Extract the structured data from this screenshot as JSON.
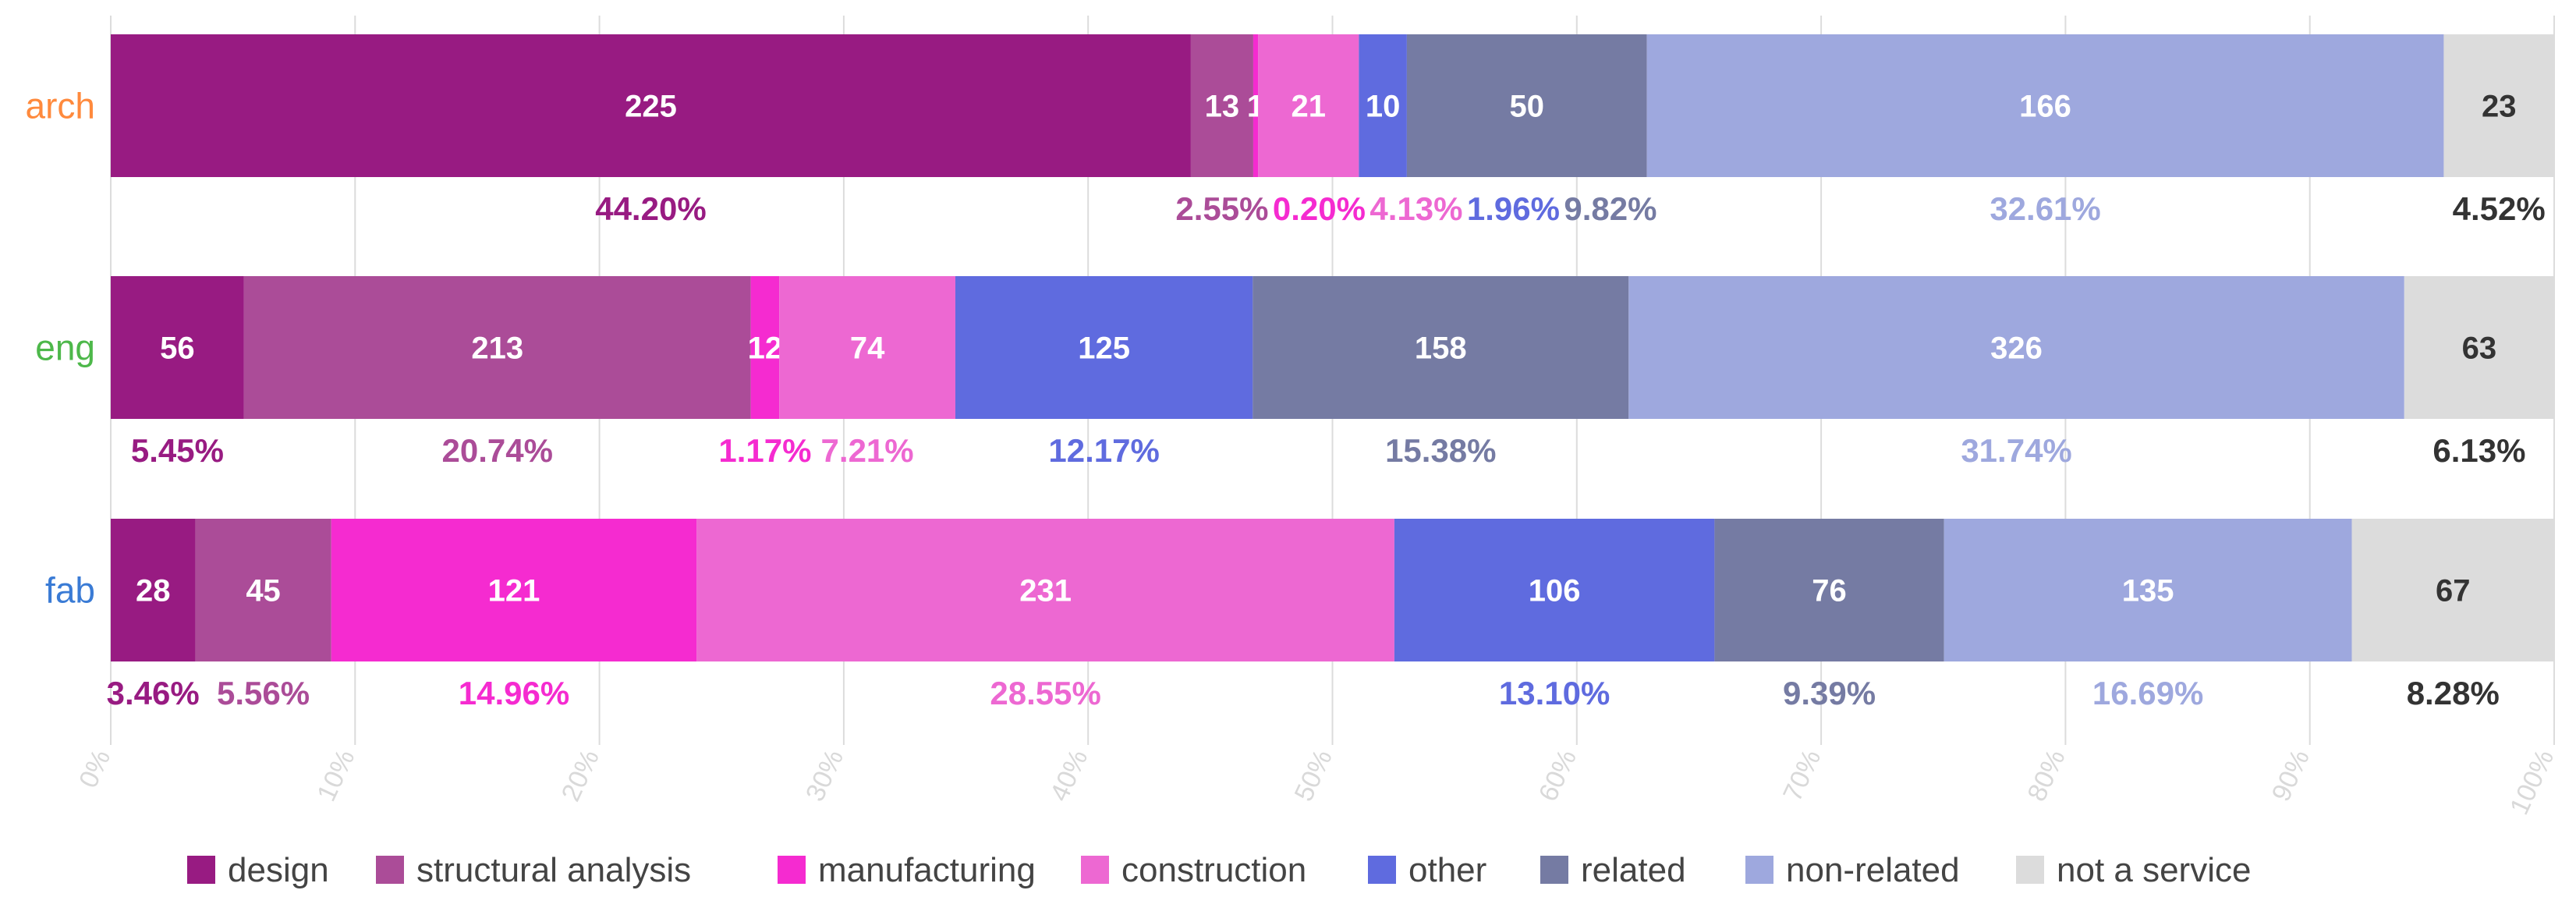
{
  "chart_data": {
    "type": "bar",
    "orientation": "horizontal",
    "stacked": true,
    "normalized": true,
    "title": "",
    "xlabel": "",
    "ylabel": "",
    "xlim": [
      0,
      100
    ],
    "grid": true,
    "legend_position": "bottom",
    "x_ticks": [
      "0%",
      "10%",
      "20%",
      "30%",
      "40%",
      "50%",
      "60%",
      "70%",
      "80%",
      "90%",
      "100%"
    ],
    "categories": [
      {
        "label": "arch",
        "color": "#ff8a3d"
      },
      {
        "label": "eng",
        "color": "#4db84a"
      },
      {
        "label": "fab",
        "color": "#3a7bd5"
      }
    ],
    "series": [
      {
        "name": "design",
        "color": "#981b82",
        "label_color": "#ffffff",
        "pct_color": "#981b82",
        "values": [
          225,
          56,
          28
        ],
        "percent_labels": [
          "44.20%",
          "5.45%",
          "3.46%"
        ]
      },
      {
        "name": "structural analysis",
        "color": "#ab4c98",
        "label_color": "#ffffff",
        "pct_color": "#ab4c98",
        "values": [
          13,
          213,
          45
        ],
        "percent_labels": [
          "2.55%",
          "20.74%",
          "5.56%"
        ]
      },
      {
        "name": "manufacturing",
        "color": "#f52bd0",
        "label_color": "#ffffff",
        "pct_color": "#f52bd0",
        "values": [
          1,
          12,
          121
        ],
        "percent_labels": [
          "0.20%",
          "1.17%",
          "14.96%"
        ]
      },
      {
        "name": "construction",
        "color": "#ed68d2",
        "label_color": "#ffffff",
        "pct_color": "#ed68d2",
        "values": [
          21,
          74,
          231
        ],
        "percent_labels": [
          "4.13%",
          "7.21%",
          "28.55%"
        ]
      },
      {
        "name": "other",
        "color": "#5f6bdf",
        "label_color": "#ffffff",
        "pct_color": "#5f6bdf",
        "values": [
          10,
          125,
          106
        ],
        "percent_labels": [
          "1.96%",
          "12.17%",
          "13.10%"
        ]
      },
      {
        "name": "related",
        "color": "#757ba3",
        "label_color": "#ffffff",
        "pct_color": "#757ba3",
        "values": [
          50,
          158,
          76
        ],
        "percent_labels": [
          "9.82%",
          "15.38%",
          "9.39%"
        ]
      },
      {
        "name": "non-related",
        "color": "#9ea8de",
        "label_color": "#ffffff",
        "pct_color": "#9ea8de",
        "values": [
          166,
          326,
          135
        ],
        "percent_labels": [
          "32.61%",
          "31.74%",
          "16.69%"
        ]
      },
      {
        "name": "not a service",
        "color": "#dcdcdc",
        "label_color": "#333333",
        "pct_color": "#333333",
        "values": [
          23,
          63,
          67
        ],
        "percent_labels": [
          "4.52%",
          "6.13%",
          "8.28%"
        ]
      }
    ]
  }
}
